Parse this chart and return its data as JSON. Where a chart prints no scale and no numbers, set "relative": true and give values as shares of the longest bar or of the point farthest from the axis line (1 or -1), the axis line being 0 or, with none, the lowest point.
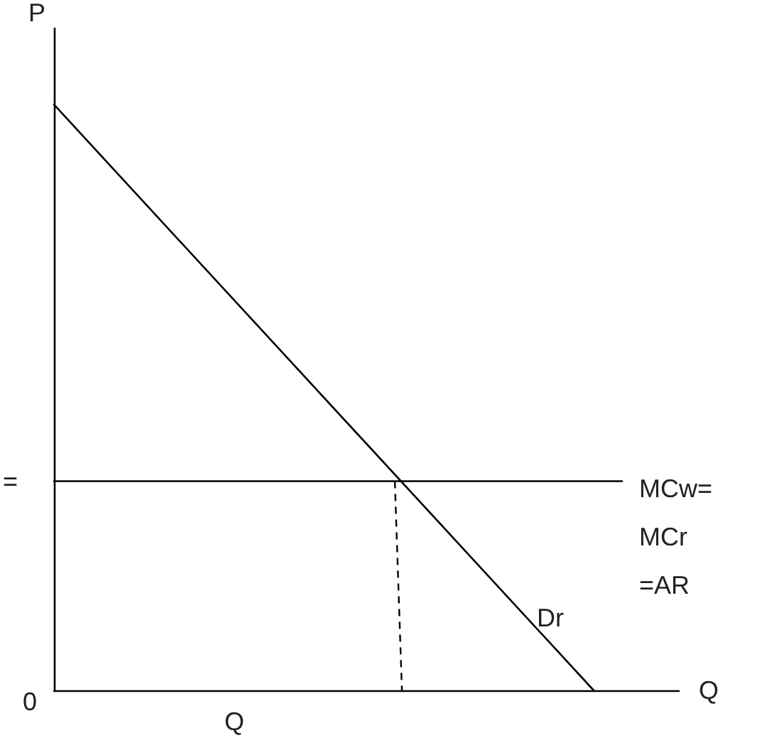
{
  "chart_data": {
    "type": "line",
    "relative": true,
    "xlabel": "Q",
    "ylabel": "P",
    "grid": false,
    "legend": false,
    "marker": "none",
    "categories": [
      null,
      null,
      null,
      null,
      null,
      null,
      null,
      null,
      null,
      null,
      null,
      null,
      null,
      null,
      null,
      null,
      null,
      null,
      null,
      null,
      null,
      null,
      null
    ],
    "annotations": [
      "0",
      "Q",
      "="
    ],
    "series": [
      {
        "name": "Dr",
        "color": "#000000",
        "values": [
          1,
          null,
          null,
          null,
          null,
          null,
          null,
          null,
          null,
          null,
          null,
          null,
          null,
          null,
          null,
          null,
          null,
          null,
          null,
          0,
          null,
          null,
          null
        ]
      },
      {
        "name": "MCw= MCr =AR",
        "color": "#000000",
        "values": [
          0.357,
          null,
          null,
          null,
          null,
          null,
          null,
          null,
          null,
          null,
          null,
          null,
          null,
          null,
          null,
          null,
          null,
          null,
          null,
          null,
          0.357,
          null,
          null
        ]
      }
    ]
  }
}
